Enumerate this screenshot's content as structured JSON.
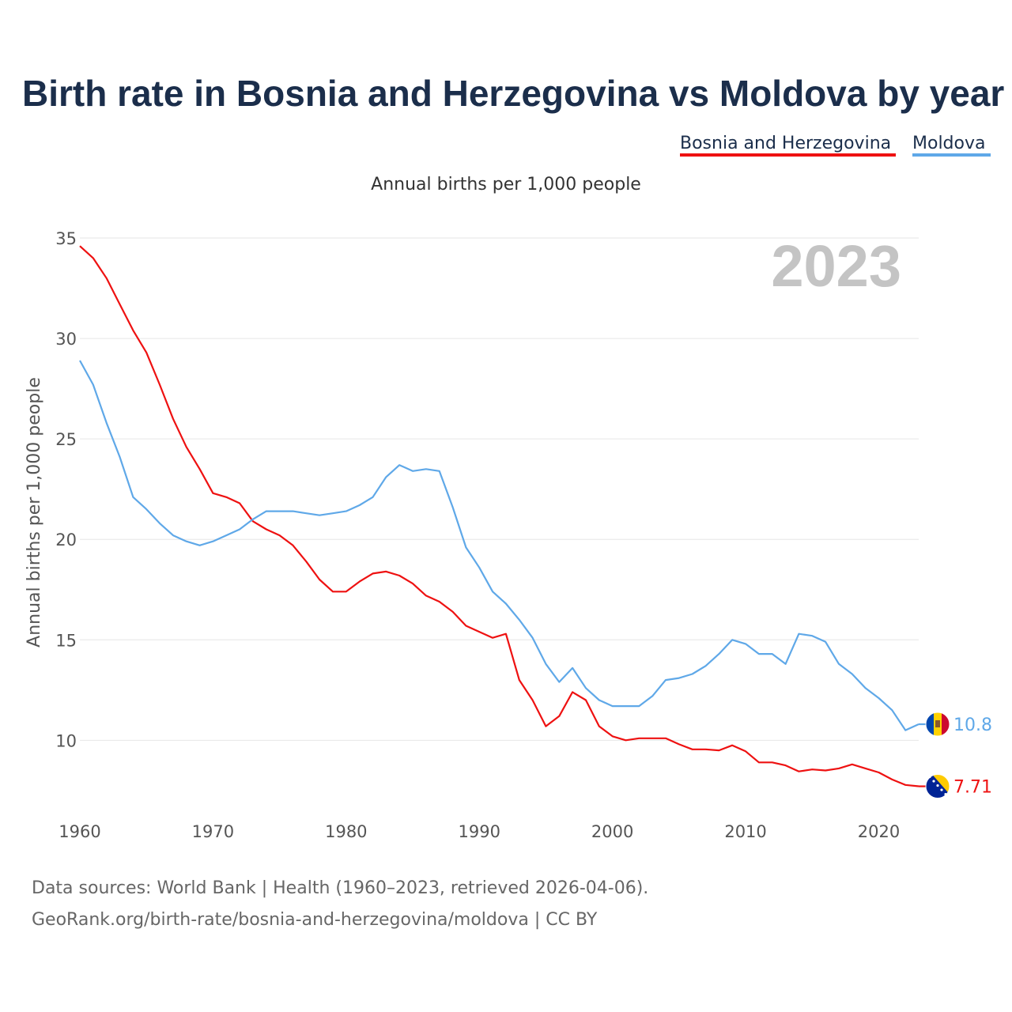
{
  "title": "Birth rate in Bosnia and Herzegovina vs Moldova by year",
  "subtitle": "Annual births per 1,000 people",
  "year_label": "2023",
  "source_line1": "Data sources: World Bank | Health (1960–2023, retrieved 2026-04-06).",
  "source_line2": "GeoRank.org/birth-rate/bosnia-and-herzegovina/moldova | CC BY",
  "chart_data": {
    "type": "line",
    "title": "Birth rate in Bosnia and Herzegovina vs Moldova by year",
    "subtitle": "Annual births per 1,000 people",
    "xlabel": "",
    "ylabel": "Annual births per 1,000 people",
    "xlim": [
      1960,
      2023
    ],
    "ylim": [
      6,
      35
    ],
    "x_ticks": [
      1960,
      1970,
      1980,
      1990,
      2000,
      2010,
      2020
    ],
    "y_ticks": [
      10,
      15,
      20,
      25,
      30,
      35
    ],
    "grid": true,
    "legend_position": "top-right",
    "x": [
      1960,
      1961,
      1962,
      1963,
      1964,
      1965,
      1966,
      1967,
      1968,
      1969,
      1970,
      1971,
      1972,
      1973,
      1974,
      1975,
      1976,
      1977,
      1978,
      1979,
      1980,
      1981,
      1982,
      1983,
      1984,
      1985,
      1986,
      1987,
      1988,
      1989,
      1990,
      1991,
      1992,
      1993,
      1994,
      1995,
      1996,
      1997,
      1998,
      1999,
      2000,
      2001,
      2002,
      2003,
      2004,
      2005,
      2006,
      2007,
      2008,
      2009,
      2010,
      2011,
      2012,
      2013,
      2014,
      2015,
      2016,
      2017,
      2018,
      2019,
      2020,
      2021,
      2022,
      2023
    ],
    "series": [
      {
        "name": "Bosnia and Herzegovina",
        "color": "#ee1111",
        "end_label": "7.71",
        "flag": "bosnia-flag-icon",
        "values": [
          34.6,
          34.0,
          33.0,
          31.7,
          30.4,
          29.3,
          27.7,
          26.0,
          24.6,
          23.5,
          22.3,
          22.1,
          21.8,
          20.9,
          20.5,
          20.2,
          19.7,
          18.9,
          18.0,
          17.4,
          17.4,
          17.9,
          18.3,
          18.4,
          18.2,
          17.8,
          17.2,
          16.9,
          16.4,
          15.7,
          15.4,
          15.1,
          15.3,
          13.0,
          12.0,
          10.7,
          11.2,
          12.4,
          12.0,
          10.7,
          10.2,
          10.0,
          10.1,
          10.1,
          10.1,
          9.8,
          9.55,
          9.55,
          9.5,
          9.75,
          9.45,
          8.9,
          8.9,
          8.75,
          8.45,
          8.55,
          8.5,
          8.6,
          8.8,
          8.6,
          8.4,
          8.05,
          7.78,
          7.71
        ]
      },
      {
        "name": "Moldova",
        "color": "#5fa8e8",
        "end_label": "10.8",
        "flag": "moldova-flag-icon",
        "values": [
          28.9,
          27.7,
          25.8,
          24.1,
          22.1,
          21.5,
          20.8,
          20.2,
          19.9,
          19.7,
          19.9,
          20.2,
          20.5,
          21.0,
          21.4,
          21.4,
          21.4,
          21.3,
          21.2,
          21.3,
          21.4,
          21.7,
          22.1,
          23.1,
          23.7,
          23.4,
          23.5,
          23.4,
          21.6,
          19.6,
          18.6,
          17.4,
          16.8,
          16.0,
          15.1,
          13.8,
          12.9,
          13.6,
          12.6,
          12.0,
          11.7,
          11.7,
          11.7,
          12.2,
          13.0,
          13.1,
          13.3,
          13.7,
          14.3,
          15.0,
          14.8,
          14.3,
          14.3,
          13.8,
          15.3,
          15.2,
          14.9,
          13.8,
          13.3,
          12.6,
          12.1,
          11.5,
          10.5,
          10.8
        ]
      }
    ]
  }
}
